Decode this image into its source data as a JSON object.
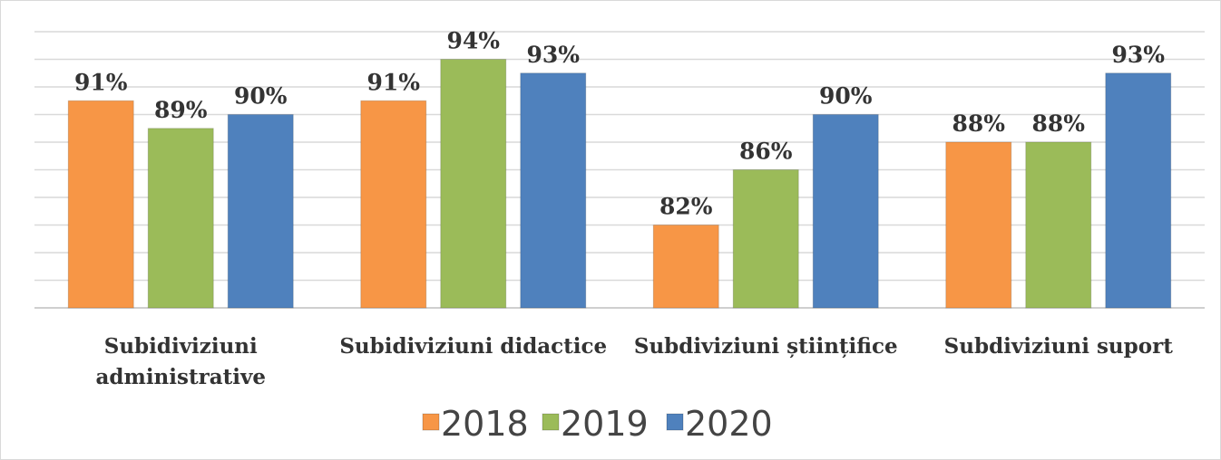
{
  "chart_data": {
    "type": "bar",
    "categories": [
      "Subidiviziuni administrative",
      "Subidiviziuni didactice",
      "Subdiviziuni științifice",
      "Subdiviziuni suport"
    ],
    "series": [
      {
        "name": "2018",
        "color": "#f79646",
        "values": [
          91,
          91,
          82,
          88
        ],
        "value_labels": [
          "91%",
          "91%",
          "82%",
          "88%"
        ]
      },
      {
        "name": "2019",
        "color": "#9bbb59",
        "values": [
          89,
          94,
          86,
          88
        ],
        "value_labels": [
          "89%",
          "94%",
          "86%",
          "88%"
        ]
      },
      {
        "name": "2020",
        "color": "#4f81bd",
        "values": [
          90,
          93,
          90,
          93
        ],
        "value_labels": [
          "90%",
          "93%",
          "90%",
          "93%"
        ]
      }
    ],
    "ylim": [
      76,
      96
    ],
    "yticks": [
      76,
      78,
      80,
      82,
      84,
      86,
      88,
      90,
      92,
      94,
      96
    ],
    "grid": true,
    "legend": "bottom"
  }
}
